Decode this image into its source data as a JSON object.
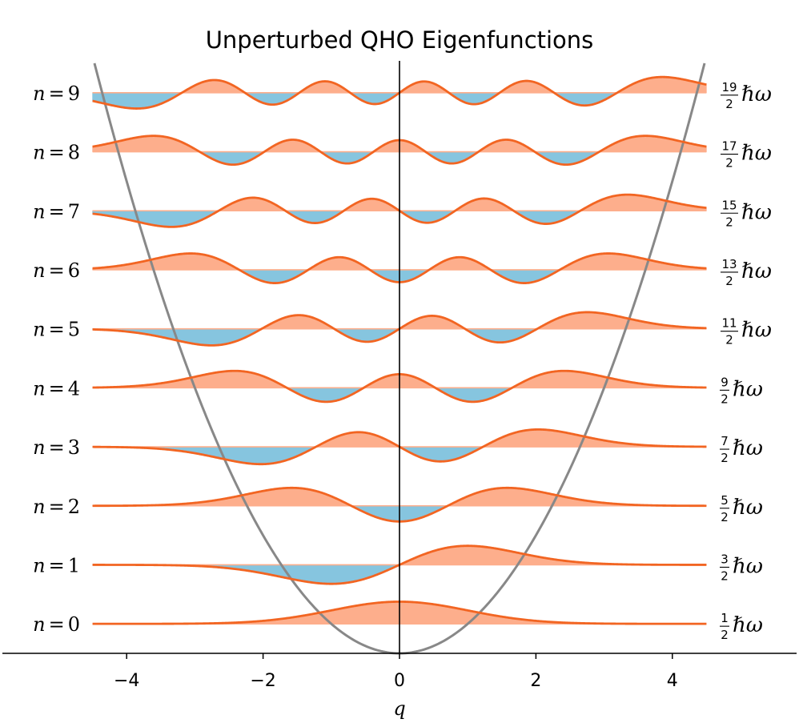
{
  "chart_data": {
    "type": "line",
    "title": "Unperturbed QHO Eigenfunctions",
    "xlabel": "q",
    "ylabel": "",
    "xlim": [
      -5.85,
      5.75
    ],
    "x_ticks": [
      -4,
      -2,
      0,
      2,
      4
    ],
    "x_tick_labels": [
      "−4",
      "−2",
      "0",
      "2",
      "4"
    ],
    "q_range": [
      -4.5,
      4.5
    ],
    "potential": {
      "expression": "V(q) = q^2 / 2",
      "color": "#888888"
    },
    "wavefunction_amplitude_scale": 0.5,
    "fill_positive_color": "#fdae8c",
    "fill_negative_color": "#86c5df",
    "line_color": "#f26522",
    "legend": "none",
    "grid": false,
    "levels": [
      {
        "n": 0,
        "label": "n = 0",
        "energy_num": "1",
        "energy_den": "2",
        "energy_unit": "ℏω"
      },
      {
        "n": 1,
        "label": "n = 1",
        "energy_num": "3",
        "energy_den": "2",
        "energy_unit": "ℏω"
      },
      {
        "n": 2,
        "label": "n = 2",
        "energy_num": "5",
        "energy_den": "2",
        "energy_unit": "ℏω"
      },
      {
        "n": 3,
        "label": "n = 3",
        "energy_num": "7",
        "energy_den": "2",
        "energy_unit": "ℏω"
      },
      {
        "n": 4,
        "label": "n = 4",
        "energy_num": "9",
        "energy_den": "2",
        "energy_unit": "ℏω"
      },
      {
        "n": 5,
        "label": "n = 5",
        "energy_num": "11",
        "energy_den": "2",
        "energy_unit": "ℏω"
      },
      {
        "n": 6,
        "label": "n = 6",
        "energy_num": "13",
        "energy_den": "2",
        "energy_unit": "ℏω"
      },
      {
        "n": 7,
        "label": "n = 7",
        "energy_num": "15",
        "energy_den": "2",
        "energy_unit": "ℏω"
      },
      {
        "n": 8,
        "label": "n = 8",
        "energy_num": "17",
        "energy_den": "2",
        "energy_unit": "ℏω"
      },
      {
        "n": 9,
        "label": "n = 9",
        "energy_num": "19",
        "energy_den": "2",
        "energy_unit": "ℏω"
      }
    ]
  }
}
